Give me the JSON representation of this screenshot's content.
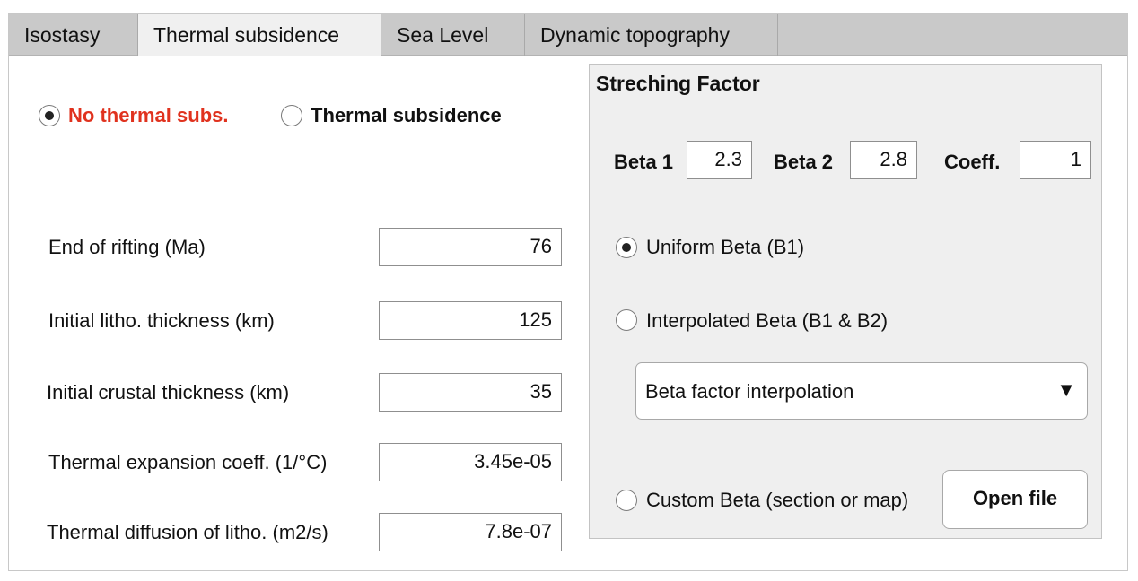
{
  "tabs": [
    {
      "label": "Isostasy"
    },
    {
      "label": "Thermal subsidence"
    },
    {
      "label": "Sea Level"
    },
    {
      "label": "Dynamic topography"
    }
  ],
  "mode": {
    "no_thermal_label": "No thermal subs.",
    "thermal_label": "Thermal subsidence",
    "selected": "No thermal subs.",
    "active_color": "#e0321e"
  },
  "params": [
    {
      "label": "End of rifting (Ma)",
      "value": "76"
    },
    {
      "label": "Initial litho. thickness (km)",
      "value": "125"
    },
    {
      "label": "Initial crustal thickness (km)",
      "value": "35"
    },
    {
      "label": "Thermal expansion coeff. (1/°C)",
      "value": "3.45e-05"
    },
    {
      "label": "Thermal diffusion of litho. (m2/s)",
      "value": "7.8e-07"
    }
  ],
  "stretching": {
    "title": "Streching Factor",
    "beta1_label": "Beta 1",
    "beta1_value": "2.3",
    "beta2_label": "Beta 2",
    "beta2_value": "2.8",
    "coeff_label": "Coeff.",
    "coeff_value": "1",
    "uniform_label": "Uniform Beta (B1)",
    "interpolated_label": "Interpolated Beta (B1 & B2)",
    "custom_label": "Custom Beta (section or map)",
    "selected": "Uniform Beta (B1)",
    "interpolation_select": "Beta factor interpolation",
    "open_file_label": "Open file"
  }
}
